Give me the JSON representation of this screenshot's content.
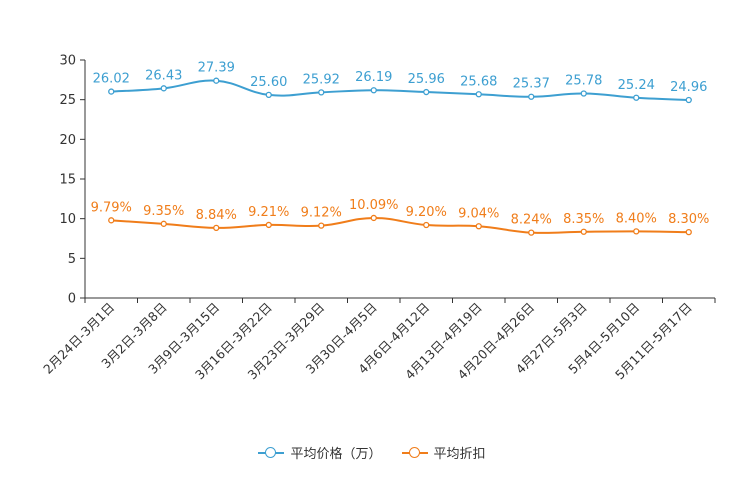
{
  "chart_data": {
    "type": "line",
    "title": "",
    "xlabel": "",
    "ylabel": "",
    "ylim": [
      0,
      30
    ],
    "yticks": [
      0,
      5,
      10,
      15,
      20,
      25,
      30
    ],
    "categories": [
      "2月24日-3月1日",
      "3月2日-3月8日",
      "3月9日-3月15日",
      "3月16日-3月22日",
      "3月23日-3月29日",
      "3月30日-4月5日",
      "4月6日-4月12日",
      "4月13日-4月19日",
      "4月20日-4月26日",
      "4月27日-5月3日",
      "5月4日-5月10日",
      "5月11日-5月17日"
    ],
    "series": [
      {
        "name": "平均价格（万）",
        "color": "#3d9fd1",
        "values": [
          26.02,
          26.43,
          27.39,
          25.6,
          25.92,
          26.19,
          25.96,
          25.68,
          25.37,
          25.78,
          25.24,
          24.96
        ],
        "labels": [
          "26.02",
          "26.43",
          "27.39",
          "25.60",
          "25.92",
          "26.19",
          "25.96",
          "25.68",
          "25.37",
          "25.78",
          "25.24",
          "24.96"
        ]
      },
      {
        "name": "平均折扣",
        "color": "#f07d1a",
        "values": [
          9.79,
          9.35,
          8.84,
          9.21,
          9.12,
          10.09,
          9.2,
          9.04,
          8.24,
          8.35,
          8.4,
          8.3
        ],
        "labels": [
          "9.79%",
          "9.35%",
          "8.84%",
          "9.21%",
          "9.12%",
          "10.09%",
          "9.20%",
          "9.04%",
          "8.24%",
          "8.35%",
          "8.40%",
          "8.30%"
        ]
      }
    ],
    "legend_position": "bottom-center"
  }
}
